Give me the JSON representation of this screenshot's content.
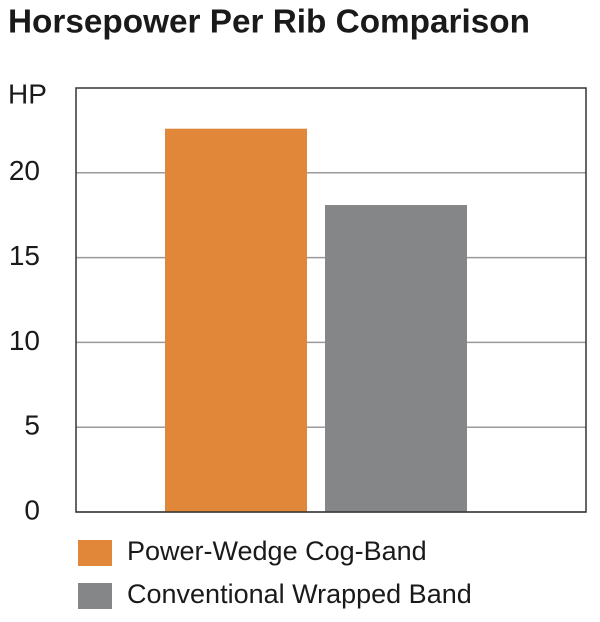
{
  "chart_data": {
    "type": "bar",
    "title": "Horsepower Per Rib Comparison",
    "y_label": "HP",
    "series": [
      {
        "name": "Power-Wedge Cog-Band",
        "color": "#e0873a",
        "values": [
          22.6
        ]
      },
      {
        "name": "Conventional Wrapped Band",
        "color": "#858687",
        "values": [
          18.1
        ]
      }
    ],
    "ylim": [
      0,
      25
    ],
    "yticks": [
      0,
      5,
      10,
      15,
      20
    ],
    "grid": true
  }
}
